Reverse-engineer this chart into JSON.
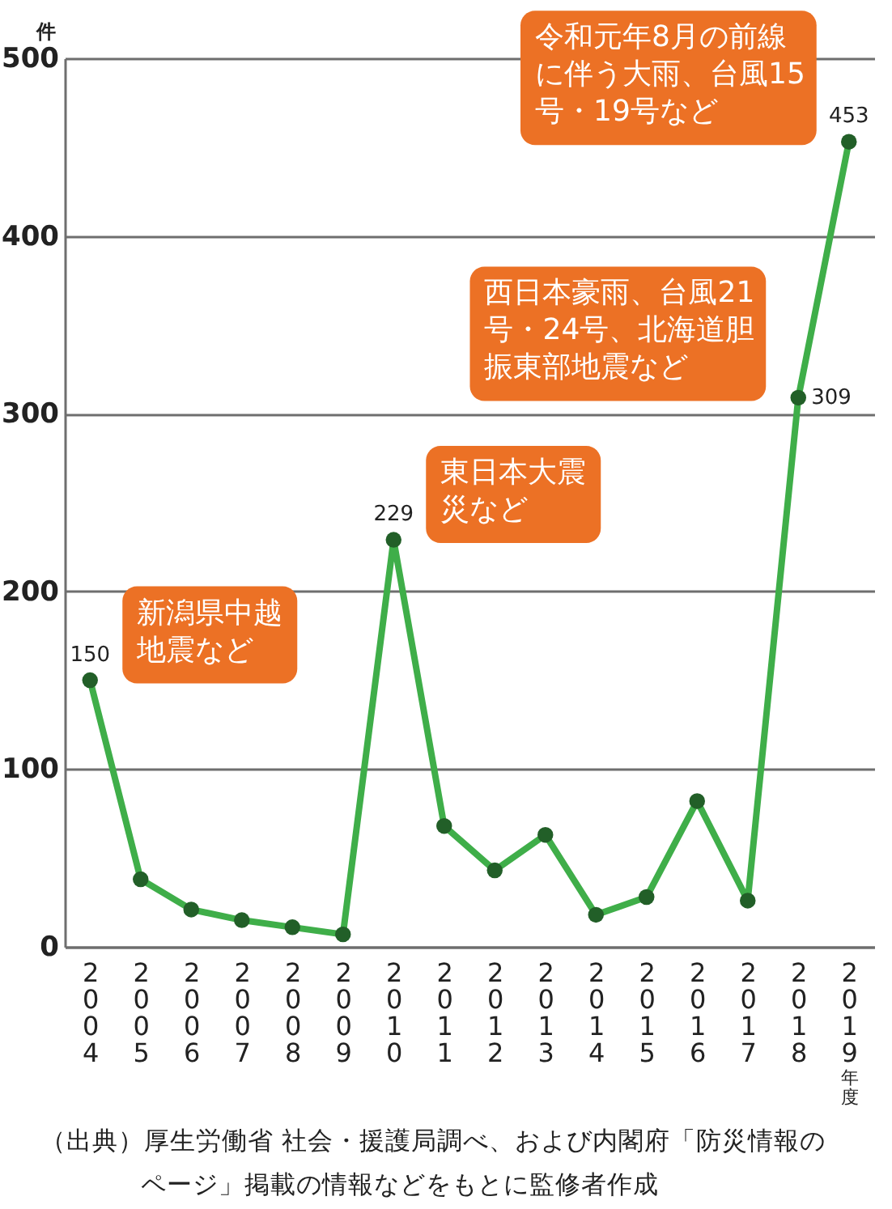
{
  "chart_data": {
    "type": "line",
    "xlabel": "年度",
    "ylabel": "件",
    "categories": [
      "2004",
      "2005",
      "2006",
      "2007",
      "2008",
      "2009",
      "2010",
      "2011",
      "2012",
      "2013",
      "2014",
      "2015",
      "2016",
      "2017",
      "2018",
      "2019"
    ],
    "series": [
      {
        "color": "#3fae49",
        "values": [
          150,
          38,
          21,
          15,
          11,
          7,
          229,
          68,
          43,
          63,
          18,
          28,
          82,
          26,
          309,
          453
        ],
        "value_labels": [
          "150",
          null,
          null,
          null,
          null,
          null,
          "229",
          null,
          null,
          null,
          null,
          null,
          null,
          null,
          "309",
          "453"
        ]
      }
    ],
    "ylim": [
      0,
      500
    ],
    "yticks": [
      0,
      100,
      200,
      300,
      400,
      500
    ],
    "grid": "y",
    "marker": "circle",
    "line_style": "solid",
    "annotations": [
      {
        "text": "新潟県中越地震など",
        "x": "2004",
        "y": 150
      },
      {
        "text": "東日本大震災など",
        "x": "2010",
        "y": 229
      },
      {
        "text": "西日本豪雨、台風21号・24号、北海道胆振東部地震など",
        "x": "2018",
        "y": 309
      },
      {
        "text": "令和元年8月の前線に伴う大雨、台風15号・19号など",
        "x": "2019",
        "y": 453
      },
      "（出典）厚生労働省 社会・援護局調べ、および内閣府「防災情報のページ」掲載の情報などをもとに監修者作成"
    ]
  }
}
